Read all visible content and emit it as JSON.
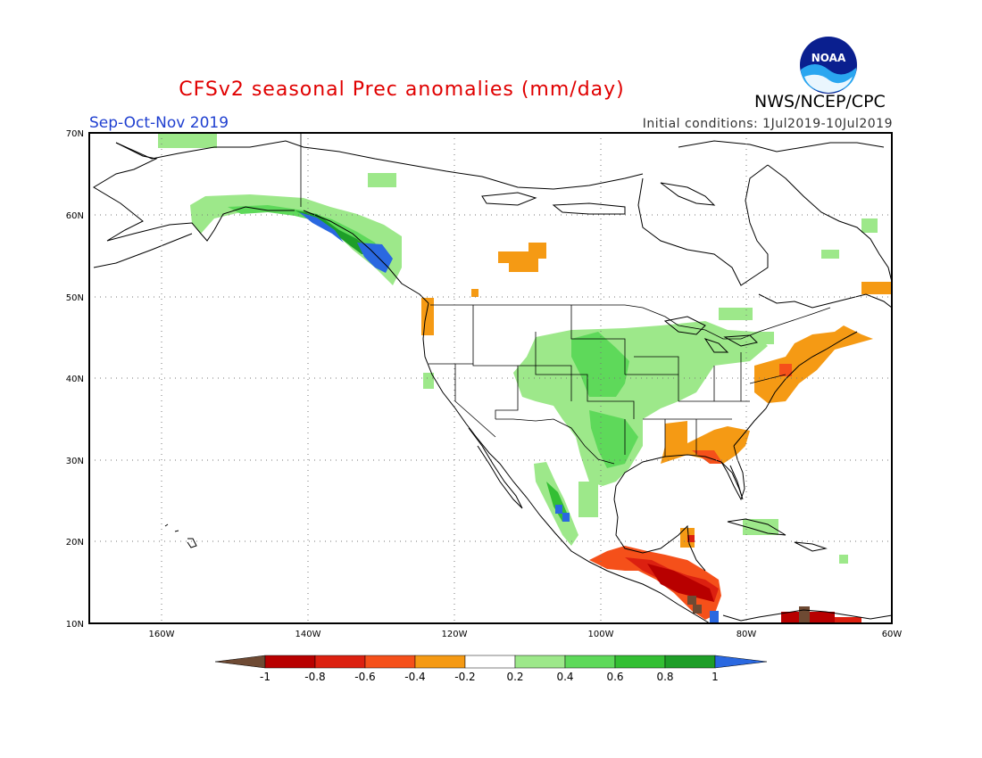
{
  "title": "CFSv2 seasonal Prec anomalies (mm/day)",
  "season": "Sep-Oct-Nov 2019",
  "initial_conditions": "Initial conditions: 1Jul2019-10Jul2019",
  "agency": "NWS/NCEP/CPC",
  "logo_text": "NOAA",
  "map": {
    "lon_range": [
      -172,
      -60
    ],
    "lat_range": [
      10,
      70
    ],
    "lat_labels": [
      "70N",
      "60N",
      "50N",
      "40N",
      "30N",
      "20N",
      "10N"
    ],
    "lon_labels": [
      "160W",
      "140W",
      "120W",
      "100W",
      "80W",
      "60W"
    ],
    "grid": "dotted"
  },
  "colorbar": {
    "labels": [
      "-1",
      "-0.8",
      "-0.6",
      "-0.4",
      "-0.2",
      "0.2",
      "0.4",
      "0.6",
      "0.8",
      "1"
    ],
    "colors": [
      "#6e4a33",
      "#b80000",
      "#dc2010",
      "#f5501a",
      "#f59a14",
      "#ffffff",
      "#9de88a",
      "#5ed95a",
      "#33bf33",
      "#1e9e28",
      "#2a68e0"
    ]
  }
}
